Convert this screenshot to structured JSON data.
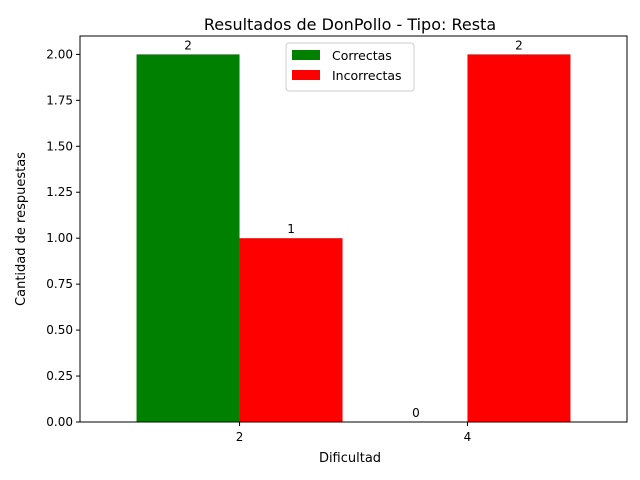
{
  "chart_data": {
    "type": "bar",
    "title": "Resultados de DonPollo - Tipo: Resta",
    "xlabel": "Dificultad",
    "ylabel": "Cantidad de respuestas",
    "categories": [
      "2",
      "4"
    ],
    "series": [
      {
        "name": "Correctas",
        "values": [
          2,
          0
        ],
        "color": "#008000"
      },
      {
        "name": "Incorrectas",
        "values": [
          1,
          2
        ],
        "color": "#ff0000"
      }
    ],
    "ylim": [
      0,
      2.1
    ],
    "yticks": [
      "0.00",
      "0.25",
      "0.50",
      "0.75",
      "1.00",
      "1.25",
      "1.50",
      "1.75",
      "2.00"
    ],
    "data_labels": [
      [
        "2",
        "0"
      ],
      [
        "1",
        "2"
      ]
    ],
    "legend_position": "top-center",
    "grid": false
  }
}
